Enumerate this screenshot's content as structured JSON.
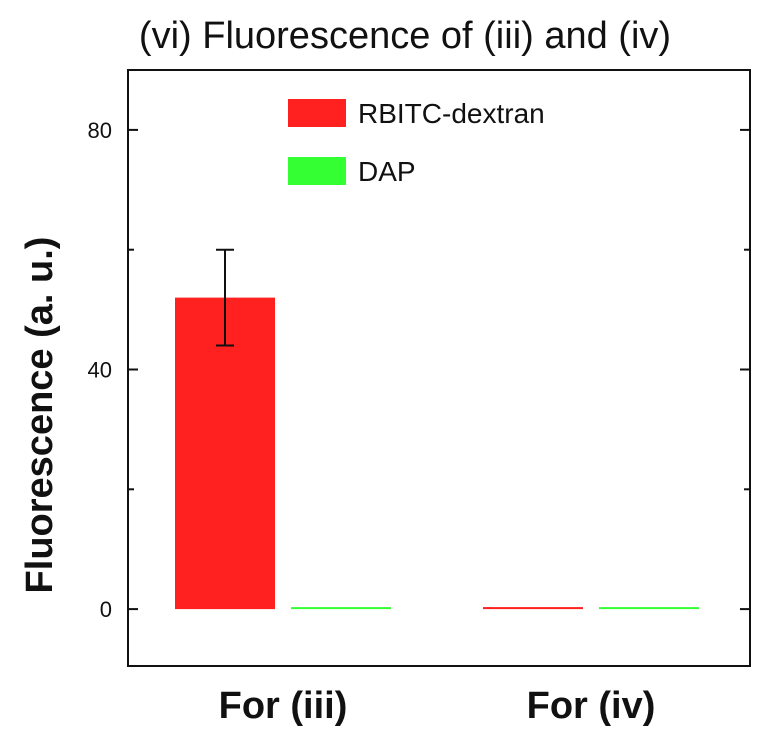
{
  "chart_data": {
    "type": "bar",
    "title": "(vi) Fluorescence of (iii) and (iv)",
    "xlabel": "",
    "ylabel": "Fluorescence (a. u.)",
    "categories": [
      "For (iii)",
      "For (iv)"
    ],
    "series": [
      {
        "name": "RBITC-dextran",
        "color": "#ff2020",
        "values": [
          52,
          0
        ],
        "errors": [
          8,
          null
        ]
      },
      {
        "name": "DAP",
        "color": "#33ff33",
        "values": [
          0,
          0
        ],
        "errors": [
          null,
          null
        ]
      }
    ],
    "ylim": [
      -9.5,
      90
    ],
    "yticks": [
      0,
      40,
      80
    ],
    "ytick_labels": [
      "0",
      "40",
      "80"
    ],
    "minor_ytick_step": 20,
    "legend_position": "top-right",
    "grid": false
  }
}
